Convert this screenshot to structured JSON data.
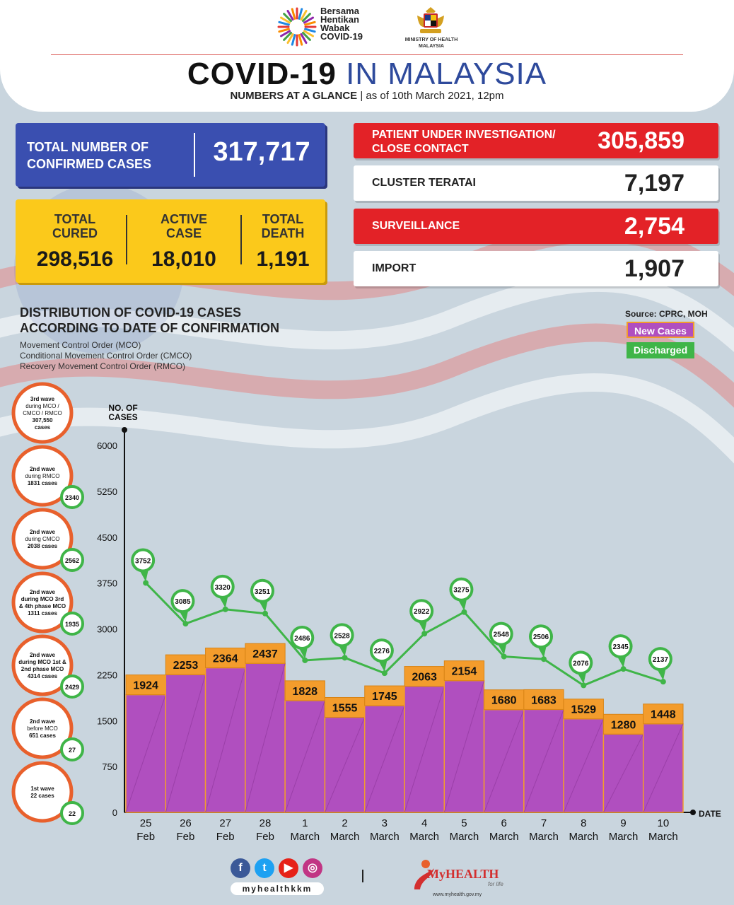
{
  "header": {
    "campaign_text": [
      "Bersama",
      "Hentikan",
      "Wabak",
      "COVID-19"
    ],
    "ministry": [
      "MINISTRY OF HEALTH",
      "MALAYSIA"
    ],
    "title_bold": "COVID-19",
    "title_light": "IN MALAYSIA",
    "subtitle_bold": "NUMBERS AT A GLANCE",
    "subtitle_rest": " | as of 10th March 2021, 12pm"
  },
  "totals": {
    "confirmed_label_1": "TOTAL NUMBER OF",
    "confirmed_label_2": "CONFIRMED CASES",
    "confirmed_value": "317,717",
    "cured_label_1": "TOTAL",
    "cured_label_2": "CURED",
    "cured_value": "298,516",
    "active_label_1": "ACTIVE",
    "active_label_2": "CASE",
    "active_value": "18,010",
    "death_label_1": "TOTAL",
    "death_label_2": "DEATH",
    "death_value": "1,191"
  },
  "sources_panel": {
    "pui_label_1": "PATIENT UNDER INVESTIGATION/",
    "pui_label_2": "CLOSE CONTACT",
    "pui_value": "305,859",
    "cluster_label": "CLUSTER TERATAI",
    "cluster_value": "7,197",
    "surveillance_label": "SURVEILLANCE",
    "surveillance_value": "2,754",
    "import_label": "IMPORT",
    "import_value": "1,907"
  },
  "distribution": {
    "title_1": "DISTRIBUTION OF COVID-19 CASES",
    "title_2": "ACCORDING TO DATE OF CONFIRMATION",
    "sub_1": "Movement Control Order (MCO)",
    "sub_2": "Conditional Movement Control Order (CMCO)",
    "sub_3": "Recovery Movement Control Order (RMCO)",
    "source": "Source: CPRC, MOH",
    "legend_new": "New Cases",
    "legend_discharged": "Discharged"
  },
  "waves": [
    {
      "lines": [
        "3rd wave",
        "during MCO /",
        "CMCO / RMCO",
        "307,550",
        "cases"
      ],
      "discharged": ""
    },
    {
      "lines": [
        "2nd wave",
        "during RMCO",
        "1831 cases"
      ],
      "discharged": "2340"
    },
    {
      "lines": [
        "2nd wave",
        "during CMCO",
        "2038 cases"
      ],
      "discharged": "2562"
    },
    {
      "lines": [
        "2nd wave",
        "during MCO 3rd",
        "& 4th phase MCO",
        "1311 cases"
      ],
      "discharged": "1935"
    },
    {
      "lines": [
        "2nd wave",
        "during MCO 1st &",
        "2nd phase MCO",
        "4314 cases"
      ],
      "discharged": "2429"
    },
    {
      "lines": [
        "2nd wave",
        "before MCO",
        "651 cases"
      ],
      "discharged": "27"
    },
    {
      "lines": [
        "1st wave",
        "22 cases"
      ],
      "discharged": "22"
    }
  ],
  "chart_data": {
    "type": "bar",
    "ylabel": "NO. OF CASES",
    "xlabel": "DATE",
    "ylim": [
      0,
      6000
    ],
    "yticks": [
      0,
      750,
      1500,
      2250,
      3000,
      3750,
      4500,
      5250,
      6000
    ],
    "categories": [
      [
        "25",
        "Feb"
      ],
      [
        "26",
        "Feb"
      ],
      [
        "27",
        "Feb"
      ],
      [
        "28",
        "Feb"
      ],
      [
        "1",
        "March"
      ],
      [
        "2",
        "March"
      ],
      [
        "3",
        "March"
      ],
      [
        "4",
        "March"
      ],
      [
        "5",
        "March"
      ],
      [
        "6",
        "March"
      ],
      [
        "7",
        "March"
      ],
      [
        "8",
        "March"
      ],
      [
        "9",
        "March"
      ],
      [
        "10",
        "March"
      ]
    ],
    "series": [
      {
        "name": "New Cases",
        "type": "bar",
        "color": "#b04fbf",
        "values": [
          1924,
          2253,
          2364,
          2437,
          1828,
          1555,
          1745,
          2063,
          2154,
          1680,
          1683,
          1529,
          1280,
          1448
        ]
      },
      {
        "name": "Discharged",
        "type": "line",
        "color": "#3fb548",
        "values": [
          3752,
          3085,
          3320,
          3251,
          2486,
          2528,
          2276,
          2922,
          3275,
          2548,
          2506,
          2076,
          2345,
          2137
        ]
      }
    ]
  },
  "footer": {
    "handle": "myhealthkkm",
    "brand": "MyHEALTH",
    "tagline": "for life",
    "url": "www.myhealth.gov.my"
  },
  "colors": {
    "blue": "#3a4fb0",
    "yellow": "#fbc91b",
    "red": "#e32227",
    "bar": "#b04fbf",
    "bar_label": "#f39c2c",
    "line": "#3fb548",
    "wave_ring": "#e8602c"
  }
}
